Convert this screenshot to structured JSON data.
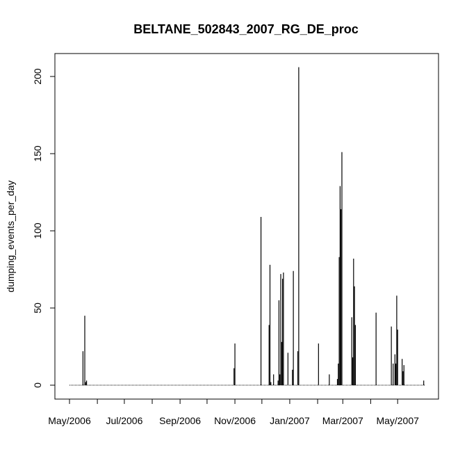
{
  "chart_data": {
    "type": "bar",
    "title": "BELTANE_502843_2007_RG_DE_proc",
    "xlabel": "",
    "ylabel": "dumping_events_per_day",
    "x_type": "date",
    "xlim": [
      "2006-05-01",
      "2007-05-31"
    ],
    "ylim": [
      0,
      210
    ],
    "y_ticks": [
      0,
      50,
      100,
      150,
      200
    ],
    "y_tick_labels": [
      "0",
      "50",
      "100",
      "150",
      "200"
    ],
    "x_ticks": [
      "2006-05-01",
      "2006-06-01",
      "2006-07-01",
      "2006-08-01",
      "2006-09-01",
      "2006-10-01",
      "2006-11-01",
      "2006-12-01",
      "2007-01-01",
      "2007-02-01",
      "2007-03-01",
      "2007-04-01",
      "2007-05-01"
    ],
    "x_tick_labels": [
      "May/2006",
      "",
      "Jul/2006",
      "",
      "Sep/2006",
      "",
      "Nov/2006",
      "",
      "Jan/2007",
      "",
      "Mar/2007",
      "",
      "May/2007"
    ],
    "grid": false,
    "legend": "none",
    "color": "#000000",
    "series": [
      {
        "x": [
          "2006-05-16",
          "2006-05-18",
          "2006-05-19",
          "2006-05-20",
          "2006-10-31",
          "2006-11-01",
          "2006-11-30",
          "2006-12-09",
          "2006-12-10",
          "2006-12-11",
          "2006-12-14",
          "2006-12-19",
          "2006-12-20",
          "2006-12-21",
          "2006-12-22",
          "2006-12-23",
          "2006-12-24",
          "2006-12-25",
          "2006-12-30",
          "2007-01-04",
          "2007-01-05",
          "2007-01-10",
          "2007-01-11",
          "2007-02-02",
          "2007-02-14",
          "2007-02-23",
          "2007-02-24",
          "2007-02-25",
          "2007-02-26",
          "2007-02-27",
          "2007-02-28",
          "2007-03-11",
          "2007-03-12",
          "2007-03-13",
          "2007-03-14",
          "2007-03-15",
          "2007-04-07",
          "2007-04-24",
          "2007-04-26",
          "2007-04-28",
          "2007-04-29",
          "2007-04-30",
          "2007-05-01",
          "2007-05-06",
          "2007-05-07",
          "2007-05-08",
          "2007-05-30"
        ],
        "values": [
          22,
          45,
          2,
          3,
          11,
          27,
          109,
          39,
          78,
          2,
          7,
          3,
          55,
          7,
          72,
          28,
          69,
          73,
          21,
          10,
          74,
          22,
          206,
          27,
          7,
          4,
          14,
          83,
          129,
          114,
          151,
          44,
          18,
          82,
          64,
          39,
          47,
          38,
          14,
          20,
          14,
          58,
          36,
          17,
          9,
          13,
          3
        ]
      }
    ]
  }
}
